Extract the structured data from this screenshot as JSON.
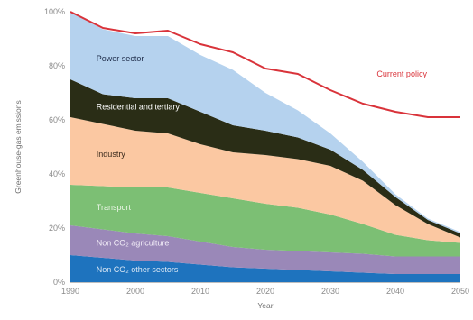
{
  "chart_data": {
    "type": "area",
    "stacked": true,
    "xlabel": "Year",
    "ylabel": "Greenhouse-gas emissions",
    "xlim": [
      1990,
      2050
    ],
    "ylim": [
      0,
      100
    ],
    "x_ticks": [
      "1990",
      "2000",
      "2010",
      "2020",
      "2030",
      "2040",
      "2050"
    ],
    "y_ticks": [
      "0%",
      "20%",
      "40%",
      "60%",
      "80%",
      "100%"
    ],
    "x": [
      1990,
      1995,
      2000,
      2005,
      2010,
      2015,
      2020,
      2025,
      2030,
      2035,
      2040,
      2045,
      2050
    ],
    "series": [
      {
        "name": "Non CO₂ other sectors",
        "label": "Non CO₂ other sectors",
        "color": "#1e73be",
        "label_color": "#dbe8f5",
        "values": [
          10,
          9,
          8,
          7.5,
          6.5,
          5.5,
          5,
          4.5,
          4,
          3.5,
          3,
          3,
          3
        ]
      },
      {
        "name": "Non CO₂ agriculture",
        "label": "Non CO₂ agriculture",
        "color": "#9a88b8",
        "label_color": "#f3eef8",
        "values": [
          11,
          10.5,
          10,
          9.5,
          8.5,
          7.5,
          7,
          7,
          7,
          7,
          6.5,
          6.5,
          6.5
        ]
      },
      {
        "name": "Transport",
        "label": "Transport",
        "color": "#7cbf74",
        "label_color": "#eaf5e6",
        "values": [
          15,
          16,
          17,
          18,
          18,
          18,
          17,
          16,
          14,
          11,
          8,
          6,
          5
        ]
      },
      {
        "name": "Industry",
        "label": "Industry",
        "color": "#fbc8a2",
        "label_color": "#3a2a1c",
        "values": [
          25,
          23,
          21,
          20,
          18,
          17,
          18,
          18,
          18,
          16,
          11,
          6,
          2
        ]
      },
      {
        "name": "Residential and tertiary",
        "label": "Residential and tertiary",
        "color": "#2a2d16",
        "label_color": "#ffffff",
        "values": [
          14,
          11,
          12,
          13,
          12,
          10,
          9,
          8,
          6,
          4,
          3,
          1.5,
          1.5
        ]
      },
      {
        "name": "Power sector",
        "label": "Power sector",
        "color": "#b5d2ee",
        "label_color": "#1f2d4a",
        "values": [
          25,
          24,
          23,
          23,
          21,
          20.5,
          14,
          10,
          6,
          3,
          1,
          0.5,
          0.5
        ]
      }
    ],
    "lines": [
      {
        "name": "Current policy",
        "label": "Current policy",
        "color": "#d9333a",
        "values": [
          100,
          94,
          92,
          93,
          88,
          85,
          79,
          77,
          71,
          66,
          63,
          61,
          61
        ]
      }
    ]
  }
}
